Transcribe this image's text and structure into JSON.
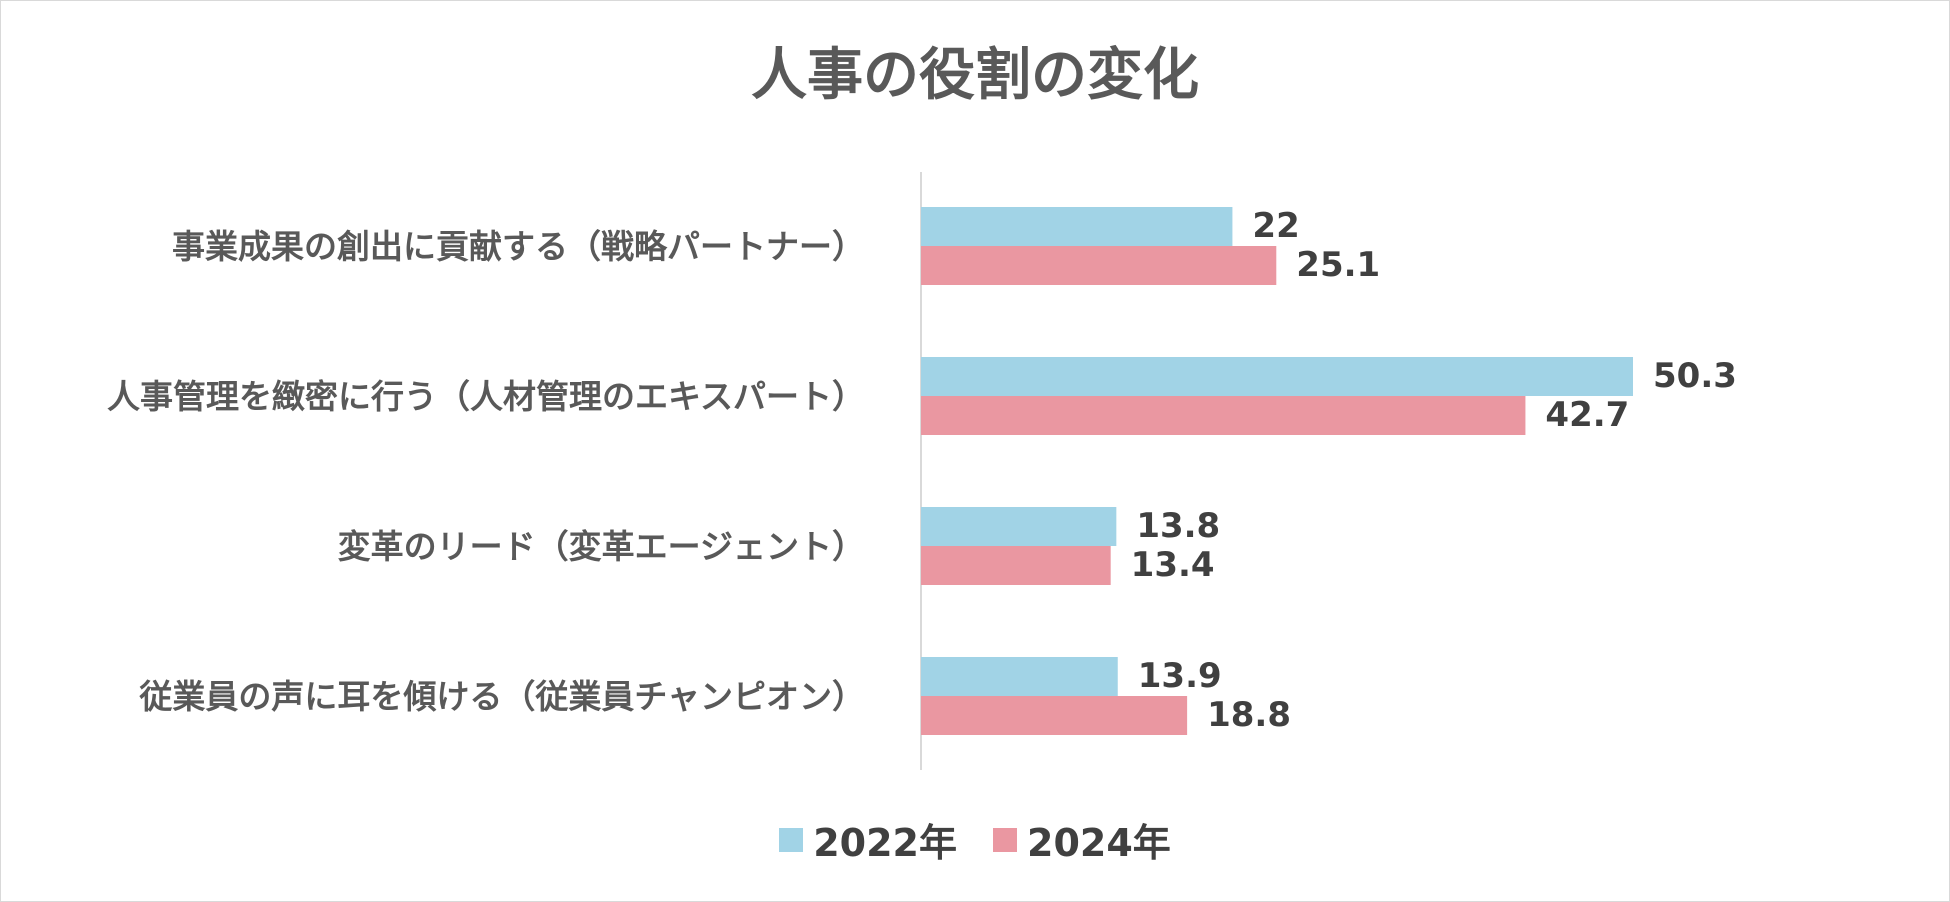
{
  "chart_data": {
    "type": "bar",
    "orientation": "horizontal",
    "title": "人事の役割の変化",
    "categories": [
      "事業成果の創出に貢献する（戦略パートナー）",
      "人事管理を緻密に行う（人材管理のエキスパート）",
      "変革のリード（変革エージェント）",
      "従業員の声に耳を傾ける（従業員チャンピオン）"
    ],
    "series": [
      {
        "name": "2022年",
        "values": [
          22,
          50.3,
          13.8,
          13.9
        ],
        "color": "#a1d3e6"
      },
      {
        "name": "2024年",
        "values": [
          25.1,
          42.7,
          13.4,
          18.8
        ],
        "color": "#ea97a1"
      }
    ],
    "value_labels": [
      [
        "22",
        "50.3",
        "13.8",
        "13.9"
      ],
      [
        "25.1",
        "42.7",
        "13.4",
        "18.8"
      ]
    ],
    "xlim": [
      0,
      55
    ],
    "grid": false,
    "legend": "bottom"
  }
}
